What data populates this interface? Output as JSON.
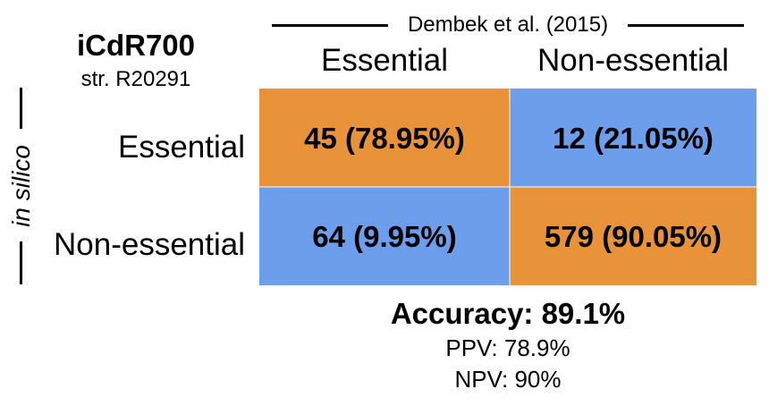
{
  "header": {
    "source_label": "Dembek et al. (2015)",
    "model_title": "iCdR700",
    "model_subtitle": "str. R20291",
    "side_label": "in silico"
  },
  "chart_data": {
    "type": "heatmap",
    "columns": [
      "Essential",
      "Non-essential"
    ],
    "rows": [
      "Essential",
      "Non-essential"
    ],
    "cells": [
      [
        {
          "label": "45 (78.95%)",
          "count": 45,
          "percent": 78.95,
          "color": "#E8923A"
        },
        {
          "label": "12 (21.05%)",
          "count": 12,
          "percent": 21.05,
          "color": "#6C9EEB"
        }
      ],
      [
        {
          "label": "64 (9.95%)",
          "count": 64,
          "percent": 9.95,
          "color": "#6C9EEB"
        },
        {
          "label": "579 (90.05%)",
          "count": 579,
          "percent": 90.05,
          "color": "#E8923A"
        }
      ]
    ]
  },
  "summary": {
    "accuracy": "Accuracy: 89.1%",
    "ppv": "PPV: 78.9%",
    "npv": "NPV: 90%"
  }
}
